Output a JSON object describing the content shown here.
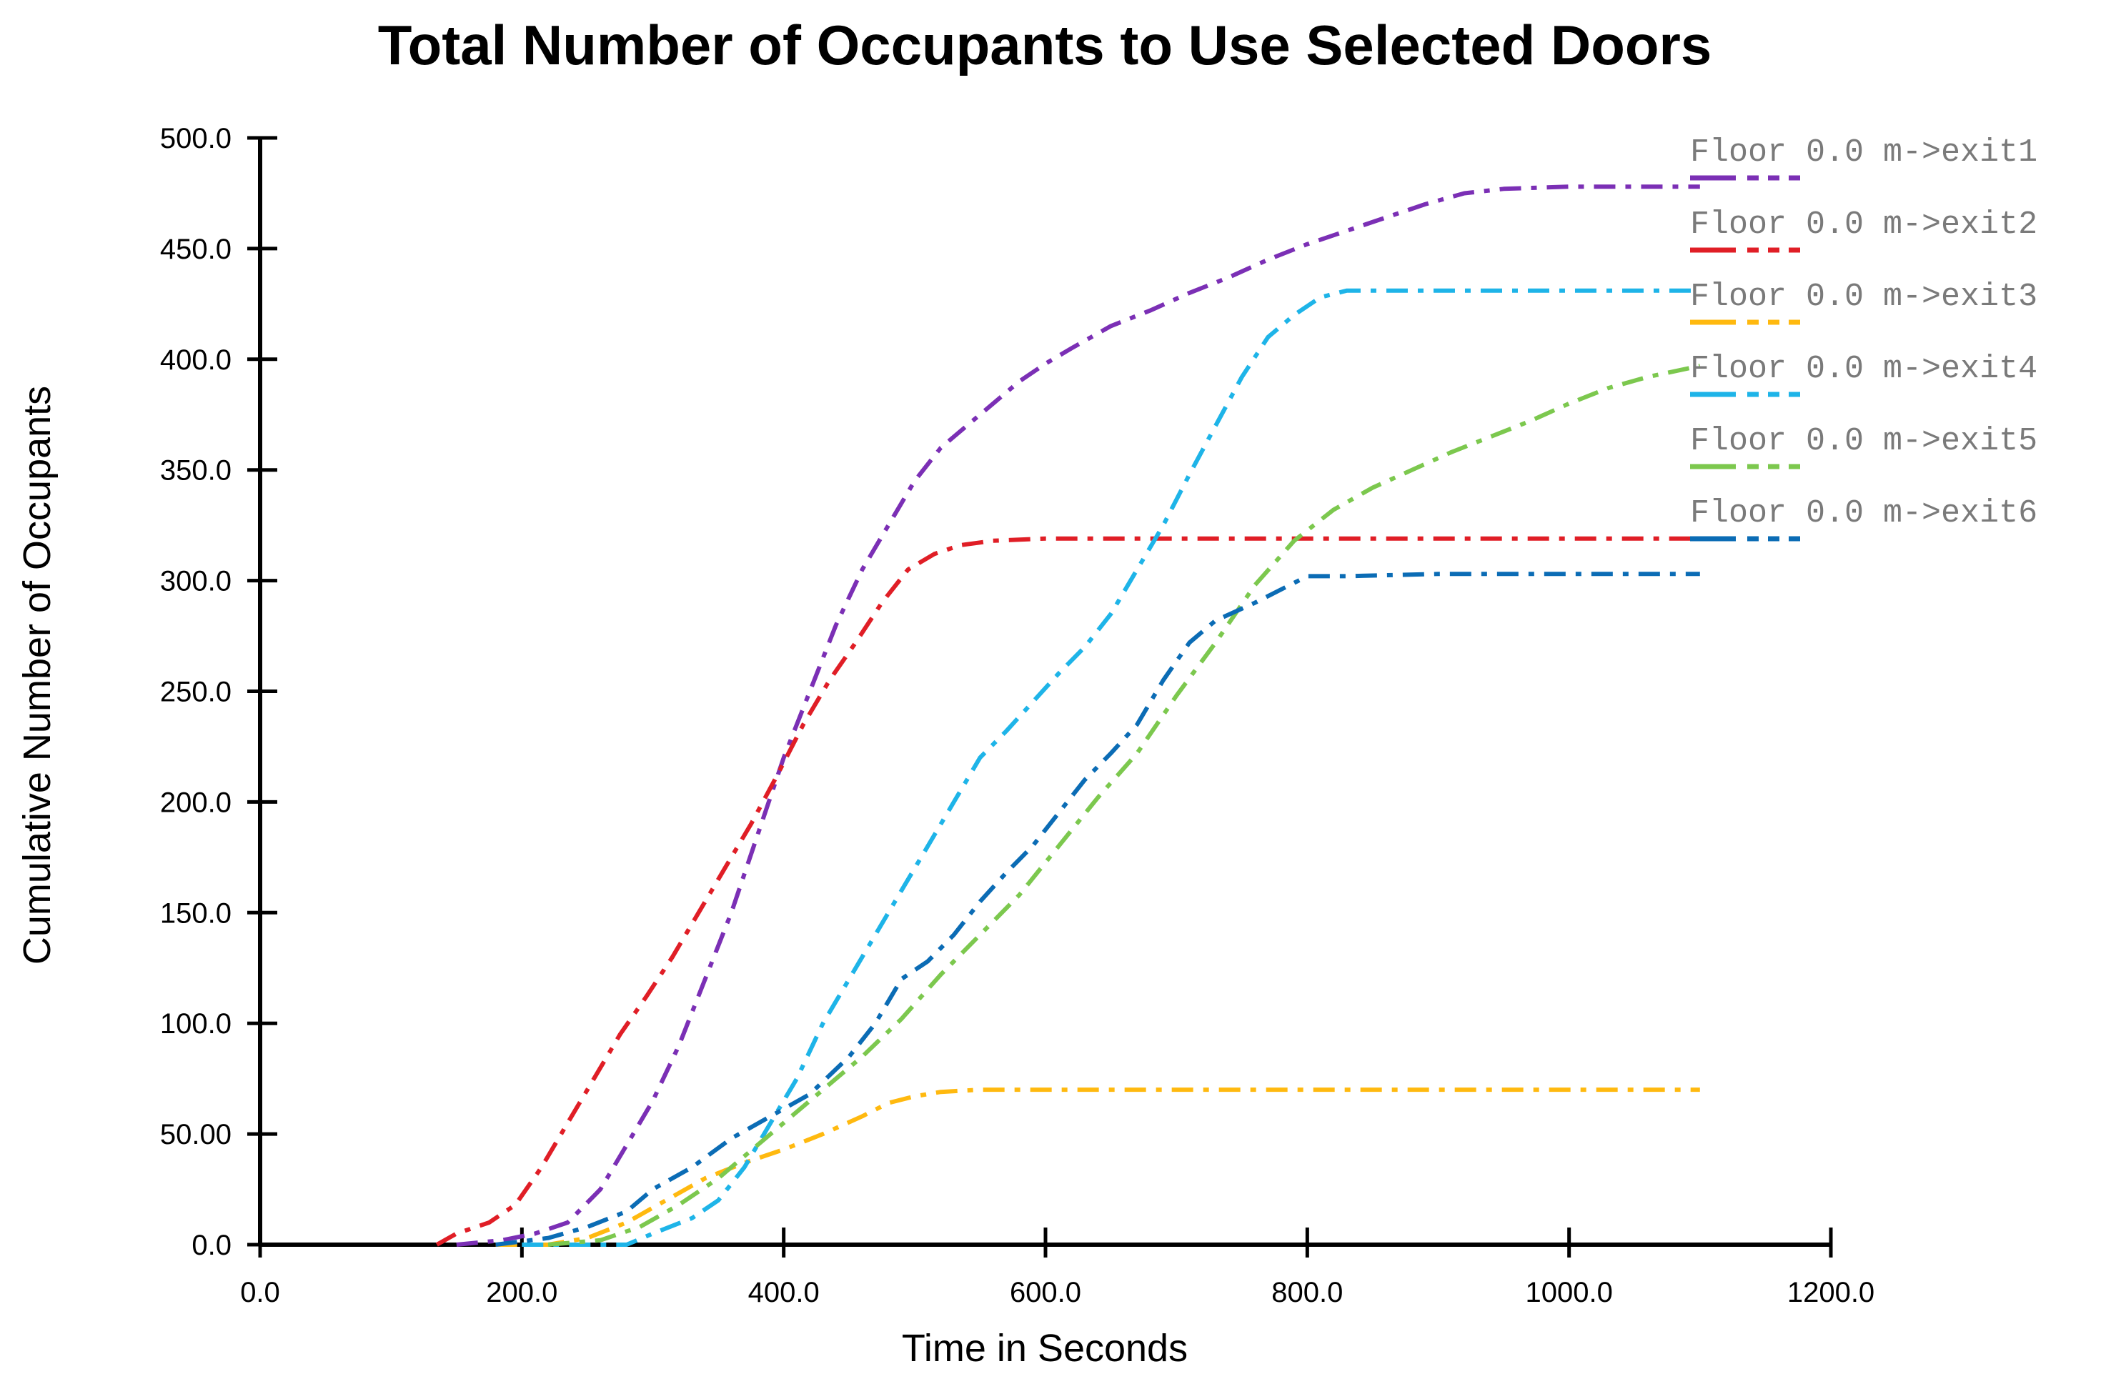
{
  "chart_data": {
    "type": "line",
    "title": "Total Number of Occupants to Use Selected Doors",
    "xlabel": "Time in Seconds",
    "ylabel": "Cumulative Number of Occupants",
    "xlim": [
      0,
      1200
    ],
    "ylim": [
      0,
      500
    ],
    "x_ticks": [
      0,
      200,
      400,
      600,
      800,
      1000,
      1200
    ],
    "x_tick_labels": [
      "0.0",
      "200.0",
      "400.0",
      "600.0",
      "800.0",
      "1000.0",
      "1200.0"
    ],
    "y_ticks": [
      0,
      50,
      100,
      150,
      200,
      250,
      300,
      350,
      400,
      450,
      500
    ],
    "y_tick_labels": [
      "0.0",
      "50.00",
      "100.0",
      "150.0",
      "200.0",
      "250.0",
      "300.0",
      "350.0",
      "400.0",
      "450.0",
      "500.0"
    ],
    "grid": false,
    "legend_position": "top-right",
    "series": [
      {
        "name": "Floor 0.0 m->exit1",
        "color": "#7B2FB5",
        "points": [
          [
            150,
            0
          ],
          [
            185,
            2
          ],
          [
            210,
            5
          ],
          [
            235,
            10
          ],
          [
            260,
            25
          ],
          [
            280,
            45
          ],
          [
            300,
            65
          ],
          [
            320,
            90
          ],
          [
            340,
            120
          ],
          [
            360,
            150
          ],
          [
            380,
            185
          ],
          [
            400,
            220
          ],
          [
            420,
            250
          ],
          [
            440,
            280
          ],
          [
            460,
            305
          ],
          [
            480,
            325
          ],
          [
            500,
            345
          ],
          [
            520,
            360
          ],
          [
            540,
            370
          ],
          [
            560,
            380
          ],
          [
            580,
            390
          ],
          [
            600,
            398
          ],
          [
            620,
            405
          ],
          [
            650,
            415
          ],
          [
            680,
            422
          ],
          [
            710,
            430
          ],
          [
            740,
            437
          ],
          [
            770,
            445
          ],
          [
            800,
            452
          ],
          [
            830,
            458
          ],
          [
            860,
            464
          ],
          [
            890,
            470
          ],
          [
            920,
            475
          ],
          [
            950,
            477
          ],
          [
            1000,
            478
          ],
          [
            1100,
            478
          ]
        ]
      },
      {
        "name": "Floor 0.0 m->exit2",
        "color": "#E01E26",
        "points": [
          [
            135,
            0
          ],
          [
            150,
            5
          ],
          [
            175,
            10
          ],
          [
            195,
            18
          ],
          [
            215,
            35
          ],
          [
            235,
            55
          ],
          [
            255,
            75
          ],
          [
            275,
            95
          ],
          [
            295,
            112
          ],
          [
            315,
            130
          ],
          [
            335,
            150
          ],
          [
            355,
            170
          ],
          [
            375,
            190
          ],
          [
            395,
            212
          ],
          [
            415,
            235
          ],
          [
            435,
            255
          ],
          [
            455,
            272
          ],
          [
            475,
            290
          ],
          [
            495,
            305
          ],
          [
            515,
            312
          ],
          [
            535,
            316
          ],
          [
            560,
            318
          ],
          [
            600,
            319
          ],
          [
            700,
            319
          ],
          [
            800,
            319
          ],
          [
            900,
            319
          ],
          [
            1000,
            319
          ],
          [
            1100,
            319
          ]
        ]
      },
      {
        "name": "Floor 0.0 m->exit3",
        "color": "#FFB90F",
        "points": [
          [
            180,
            0
          ],
          [
            220,
            0
          ],
          [
            250,
            3
          ],
          [
            280,
            10
          ],
          [
            310,
            20
          ],
          [
            340,
            30
          ],
          [
            370,
            37
          ],
          [
            400,
            43
          ],
          [
            430,
            50
          ],
          [
            460,
            58
          ],
          [
            480,
            64
          ],
          [
            500,
            67
          ],
          [
            520,
            69
          ],
          [
            550,
            70
          ],
          [
            700,
            70
          ],
          [
            900,
            70
          ],
          [
            1100,
            70
          ]
        ]
      },
      {
        "name": "Floor 0.0 m->exit4",
        "color": "#1EB4E8",
        "points": [
          [
            200,
            0
          ],
          [
            280,
            0
          ],
          [
            300,
            5
          ],
          [
            330,
            12
          ],
          [
            350,
            20
          ],
          [
            370,
            35
          ],
          [
            390,
            55
          ],
          [
            410,
            75
          ],
          [
            430,
            100
          ],
          [
            450,
            120
          ],
          [
            470,
            140
          ],
          [
            490,
            160
          ],
          [
            510,
            180
          ],
          [
            530,
            200
          ],
          [
            550,
            220
          ],
          [
            570,
            232
          ],
          [
            590,
            245
          ],
          [
            610,
            258
          ],
          [
            630,
            270
          ],
          [
            650,
            285
          ],
          [
            670,
            305
          ],
          [
            690,
            325
          ],
          [
            710,
            348
          ],
          [
            730,
            370
          ],
          [
            750,
            392
          ],
          [
            770,
            410
          ],
          [
            790,
            420
          ],
          [
            810,
            428
          ],
          [
            830,
            431
          ],
          [
            900,
            431
          ],
          [
            1000,
            431
          ],
          [
            1100,
            431
          ]
        ]
      },
      {
        "name": "Floor 0.0 m->exit5",
        "color": "#7CC84E",
        "points": [
          [
            220,
            0
          ],
          [
            260,
            2
          ],
          [
            290,
            8
          ],
          [
            320,
            18
          ],
          [
            350,
            30
          ],
          [
            380,
            45
          ],
          [
            400,
            55
          ],
          [
            430,
            70
          ],
          [
            460,
            85
          ],
          [
            490,
            102
          ],
          [
            520,
            122
          ],
          [
            550,
            140
          ],
          [
            580,
            158
          ],
          [
            610,
            180
          ],
          [
            640,
            202
          ],
          [
            670,
            222
          ],
          [
            700,
            248
          ],
          [
            730,
            272
          ],
          [
            760,
            298
          ],
          [
            790,
            318
          ],
          [
            820,
            332
          ],
          [
            850,
            342
          ],
          [
            880,
            350
          ],
          [
            910,
            358
          ],
          [
            940,
            365
          ],
          [
            970,
            372
          ],
          [
            1000,
            380
          ],
          [
            1030,
            387
          ],
          [
            1060,
            392
          ],
          [
            1100,
            397
          ]
        ]
      },
      {
        "name": "Floor 0.0 m->exit6",
        "color": "#0B6CB5",
        "points": [
          [
            180,
            0
          ],
          [
            220,
            3
          ],
          [
            250,
            8
          ],
          [
            280,
            15
          ],
          [
            300,
            25
          ],
          [
            330,
            35
          ],
          [
            360,
            48
          ],
          [
            390,
            58
          ],
          [
            420,
            68
          ],
          [
            450,
            85
          ],
          [
            470,
            100
          ],
          [
            490,
            120
          ],
          [
            510,
            128
          ],
          [
            530,
            140
          ],
          [
            550,
            155
          ],
          [
            570,
            168
          ],
          [
            590,
            180
          ],
          [
            610,
            195
          ],
          [
            630,
            210
          ],
          [
            650,
            222
          ],
          [
            670,
            235
          ],
          [
            690,
            255
          ],
          [
            710,
            272
          ],
          [
            730,
            282
          ],
          [
            760,
            290
          ],
          [
            780,
            296
          ],
          [
            800,
            302
          ],
          [
            830,
            302
          ],
          [
            900,
            303
          ],
          [
            1000,
            303
          ],
          [
            1100,
            303
          ]
        ]
      }
    ]
  }
}
